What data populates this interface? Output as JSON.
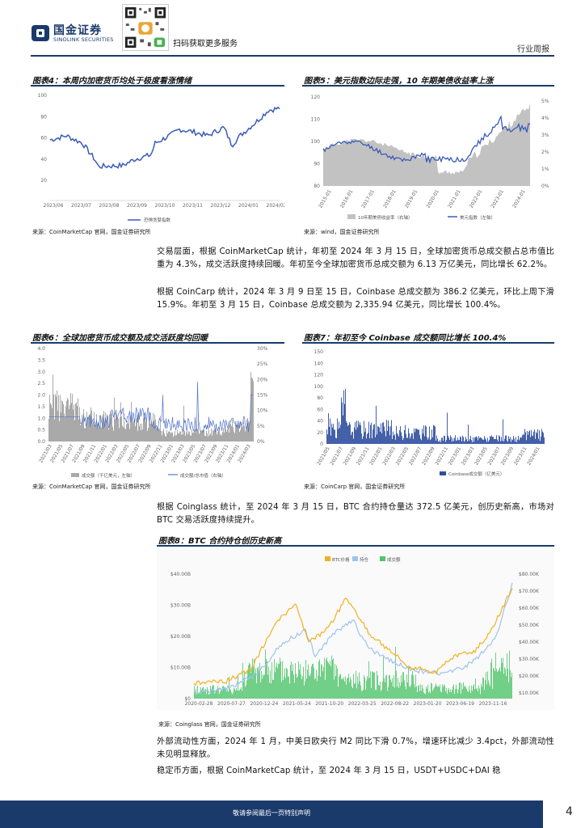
{
  "header": {
    "brand_cn": "国金证券",
    "brand_en": "SINOLINK SECURITIES",
    "qr_note": "扫码获取更多服务",
    "doc_type": "行业周报"
  },
  "fig4": {
    "title": "图表4：本周内加密货币均处于极度看涨情绪",
    "source": "来源：CoinMarketCap 官网，国金证券研究所",
    "legend": "恐惧贪婪指数",
    "y_ticks": [
      "100",
      "80",
      "60",
      "40",
      "20"
    ],
    "x_ticks": [
      "2023/06",
      "2023/07",
      "2023/08",
      "2023/09",
      "2023/10",
      "2023/11",
      "2023/12",
      "2024/01",
      "2024/02"
    ],
    "color": "#3a5bb8"
  },
  "fig5": {
    "title": "图表5：美元指数边际走强，10 年期美债收益率上涨",
    "source": "来源：wind，国金证券研究所",
    "legend": [
      "10年期美债收益率（右轴）",
      "美元指数（左轴）"
    ],
    "y_left": [
      "120",
      "110",
      "100",
      "90",
      "80"
    ],
    "y_right": [
      "5%",
      "4%",
      "3%",
      "2%",
      "1%",
      "0%"
    ],
    "x_ticks": [
      "2015-01",
      "2016-01",
      "2017-01",
      "2018-01",
      "2019-01",
      "2020-01",
      "2021-01",
      "2022-01",
      "2023-01",
      "2024-01"
    ],
    "area_color": "#c2c2c2",
    "line_color": "#3a5bb8"
  },
  "para1": "交易层面，根据 CoinMarketCap 统计，年初至 2024 年 3 月 15 日，全球加密货币总成交额占总市值比重为 4.3%，成交活跃度持续回暖。年初至今全球加密货币总成交额为 6.13 万亿美元，同比增长 62.2%。",
  "para2": "根据 CoinCarp 统计，2024 年 3 月 9 日至 15 日，Coinbase 总成交额为 386.2 亿美元，环比上周下滑 15.9%。年初至 3 月 15 日，Coinbase 总成交额为 2,335.94 亿美元，同比增长 100.4%。",
  "fig6": {
    "title": "图表6：全球加密货币成交额及成交活跃度均回暖",
    "source": "来源：CoinMarketCap 官网，国金证券研究所",
    "legend": [
      "成交额（千亿美元，左轴）",
      "成交额/总市值（右轴）"
    ],
    "y_left": [
      "4.0",
      "3.5",
      "3.0",
      "2.5",
      "2.0",
      "1.5",
      "1.0",
      "0.5",
      "0.0"
    ],
    "y_right": [
      "30%",
      "25%",
      "20%",
      "15%",
      "10%",
      "5%",
      "0%"
    ],
    "x_ticks": [
      "2021/03",
      "2021/05",
      "2021/07",
      "2021/09",
      "2021/11",
      "2022/01",
      "2022/03",
      "2022/05",
      "2022/07",
      "2022/09",
      "2022/11",
      "2023/01",
      "2023/03",
      "2023/05",
      "2023/07",
      "2023/09",
      "2023/11",
      "2024/01",
      "2024/03"
    ]
  },
  "fig7": {
    "title": "图表7：年初至今 Coinbase 成交额同比增长 100.4%",
    "source": "来源：CoinCarp 官网，国金证券研究所",
    "legend": "Coinbase成交额（亿美元）",
    "y_ticks": [
      "150",
      "140",
      "120",
      "100",
      "80",
      "60",
      "40",
      "20",
      "0"
    ],
    "x_ticks": [
      "2021/05",
      "2021/07",
      "2021/09",
      "2021/11",
      "2022/01",
      "2022/03",
      "2022/05",
      "2022/07",
      "2022/09",
      "2022/11",
      "2023/01",
      "2023/03",
      "2023/05",
      "2023/07",
      "2023/09",
      "2023/11",
      "2024/01"
    ]
  },
  "para3": "根据 Coinglass 统计，至 2024 年 3 月 15 日，BTC 合约持仓量达 372.5 亿美元，创历史新高，市场对 BTC 交易活跃度持续提升。",
  "fig8": {
    "title": "图表8：BTC 合约持仓创历史新高",
    "source": "来源：Coinglass 官网，国金证券研究所",
    "legend": [
      "BTC价格",
      "持仓",
      "成交额"
    ],
    "legend_colors": [
      "#f2b01e",
      "#9cc4ec",
      "#4fc46a"
    ],
    "y_left": [
      "$40.00B",
      "$30.00B",
      "$20.00B",
      "$10.00B",
      "$0"
    ],
    "y_right": [
      "$80.00K",
      "$70.00K",
      "$60.00K",
      "$50.00K",
      "$40.00K",
      "$30.00K",
      "$20.00K",
      "$10.00K"
    ],
    "x_ticks": [
      "2020-02-28",
      "2020-07-27",
      "2020-12-24",
      "2021-05-24",
      "2021-10-20",
      "2022-03-25",
      "2022-08-22",
      "2023-01-20",
      "2023-06-19",
      "2023-11-16"
    ]
  },
  "para4": "外部流动性方面，2024 年 1 月，中美日欧央行 M2 同比下滑 0.7%，增速环比减少 3.4pct，外部流动性未见明显释放。",
  "para5": "稳定币方面，根据 CoinMarketCap 统计，至 2024 年 3 月 15 日，USDT+USDC+DAI 稳",
  "footer": {
    "disclaimer": "敬请参阅最后一页特别声明",
    "page": "4"
  }
}
